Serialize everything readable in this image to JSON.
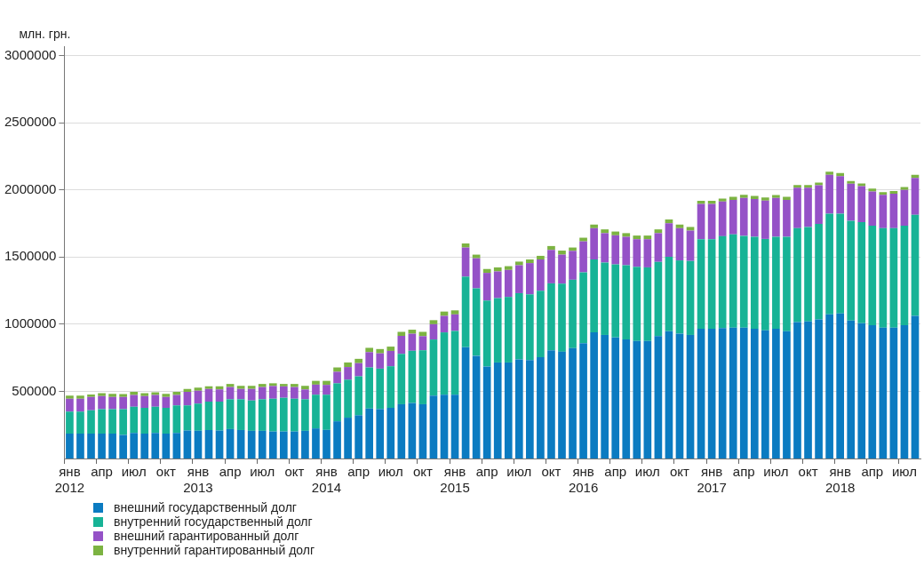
{
  "chart_data": {
    "type": "bar",
    "stacked": true,
    "ylabel": "млн. грн.",
    "grid": "y",
    "legend": "bottom left",
    "ylim": [
      0,
      3070000
    ],
    "yticks": [
      500000,
      1000000,
      1500000,
      2000000,
      2500000,
      3000000
    ],
    "categories": [
      "янв 2012",
      null,
      null,
      "апр",
      null,
      null,
      "июл",
      null,
      null,
      "окт",
      null,
      null,
      "янв 2013",
      null,
      null,
      "апр",
      null,
      null,
      "июл",
      null,
      null,
      "окт",
      null,
      null,
      "янв 2014",
      null,
      null,
      "апр",
      null,
      null,
      "июл",
      null,
      null,
      "окт",
      null,
      null,
      "янв 2015",
      null,
      null,
      "апр",
      null,
      null,
      "июл",
      null,
      null,
      "окт",
      null,
      null,
      "янв 2016",
      null,
      null,
      "апр",
      null,
      null,
      "июл",
      null,
      null,
      "окт",
      null,
      null,
      "янв 2017",
      null,
      null,
      "апр",
      null,
      null,
      "июл",
      null,
      null,
      "окт",
      null,
      null,
      "янв 2018",
      null,
      null,
      "апр",
      null,
      null,
      "июл",
      null
    ],
    "series": [
      {
        "name": "внешний государственный долг",
        "color": "#0b7bc1",
        "values": [
          185000,
          185000,
          185000,
          185000,
          185000,
          176000,
          190000,
          185000,
          190000,
          185000,
          190000,
          208000,
          206000,
          212000,
          208000,
          219000,
          212000,
          206000,
          206000,
          201000,
          201000,
          201000,
          206000,
          224000,
          213000,
          277000,
          304000,
          322000,
          372000,
          368000,
          377000,
          404000,
          413000,
          404000,
          468000,
          475000,
          475000,
          829000,
          765000,
          685000,
          715000,
          715000,
          738000,
          733000,
          754000,
          806000,
          795000,
          822000,
          859000,
          939000,
          920000,
          902000,
          886000,
          875000,
          875000,
          911000,
          948000,
          930000,
          920000,
          966000,
          966000,
          971000,
          975000,
          975000,
          966000,
          955000,
          966000,
          948000,
          1016000,
          1021000,
          1035000,
          1073000,
          1080000,
          1028000,
          1007000,
          993000,
          975000,
          975000,
          993000,
          1062000
        ]
      },
      {
        "name": "внутренний государственный долг",
        "color": "#17b396",
        "values": [
          164000,
          164000,
          174000,
          183000,
          183000,
          192000,
          196000,
          192000,
          196000,
          192000,
          205000,
          187000,
          203000,
          211000,
          215000,
          222000,
          229000,
          226000,
          235000,
          244000,
          251000,
          244000,
          235000,
          251000,
          262000,
          283000,
          283000,
          290000,
          306000,
          301000,
          310000,
          375000,
          389000,
          402000,
          418000,
          464000,
          475000,
          525000,
          502000,
          491000,
          479000,
          488000,
          493000,
          489000,
          495000,
          498000,
          507000,
          509000,
          527000,
          543000,
          539000,
          543000,
          553000,
          552000,
          548000,
          553000,
          554000,
          545000,
          551000,
          667000,
          667000,
          684000,
          694000,
          683000,
          685000,
          680000,
          685000,
          703000,
          699000,
          703000,
          712000,
          749000,
          742000,
          742000,
          753000,
          740000,
          740000,
          740000,
          740000,
          753000
        ]
      },
      {
        "name": "внешний гарантированный долг",
        "color": "#9552c7",
        "values": [
          96000,
          96000,
          100000,
          96000,
          91000,
          91000,
          87000,
          87000,
          87000,
          82000,
          78000,
          101000,
          96000,
          95000,
          91000,
          91000,
          77000,
          86000,
          91000,
          95000,
          85000,
          87000,
          73000,
          75000,
          73000,
          86000,
          94000,
          98000,
          114000,
          114000,
          114000,
          134000,
          127000,
          105000,
          114000,
          123000,
          123000,
          217000,
          224000,
          206000,
          199000,
          201000,
          208000,
          233000,
          233000,
          249000,
          216000,
          215000,
          231000,
          233000,
          219000,
          217000,
          212000,
          206000,
          210000,
          214000,
          249000,
          240000,
          226000,
          262000,
          262000,
          258000,
          256000,
          283000,
          281000,
          285000,
          290000,
          274000,
          301000,
          292000,
          287000,
          290000,
          281000,
          276000,
          268000,
          256000,
          249000,
          256000,
          267000,
          274000
        ]
      },
      {
        "name": "внутренний гарантированный долг",
        "color": "#7cb342",
        "values": [
          23000,
          23000,
          18000,
          22000,
          23000,
          21000,
          23000,
          22000,
          20000,
          23000,
          23000,
          22000,
          22000,
          19000,
          23000,
          23000,
          23000,
          23000,
          23000,
          20000,
          18000,
          23000,
          27000,
          28000,
          30000,
          32000,
          34000,
          32000,
          32000,
          32000,
          32000,
          30000,
          30000,
          32000,
          30000,
          32000,
          30000,
          30000,
          27000,
          29000,
          30000,
          28000,
          27000,
          27000,
          27000,
          29000,
          30000,
          25000,
          27000,
          27000,
          28000,
          28000,
          27000,
          27000,
          27000,
          28000,
          28000,
          27000,
          27000,
          23000,
          23000,
          23000,
          23000,
          23000,
          23000,
          23000,
          20000,
          23000,
          21000,
          21000,
          21000,
          23000,
          23000,
          20000,
          20000,
          20000,
          20000,
          20000,
          21000,
          23000
        ]
      }
    ]
  }
}
